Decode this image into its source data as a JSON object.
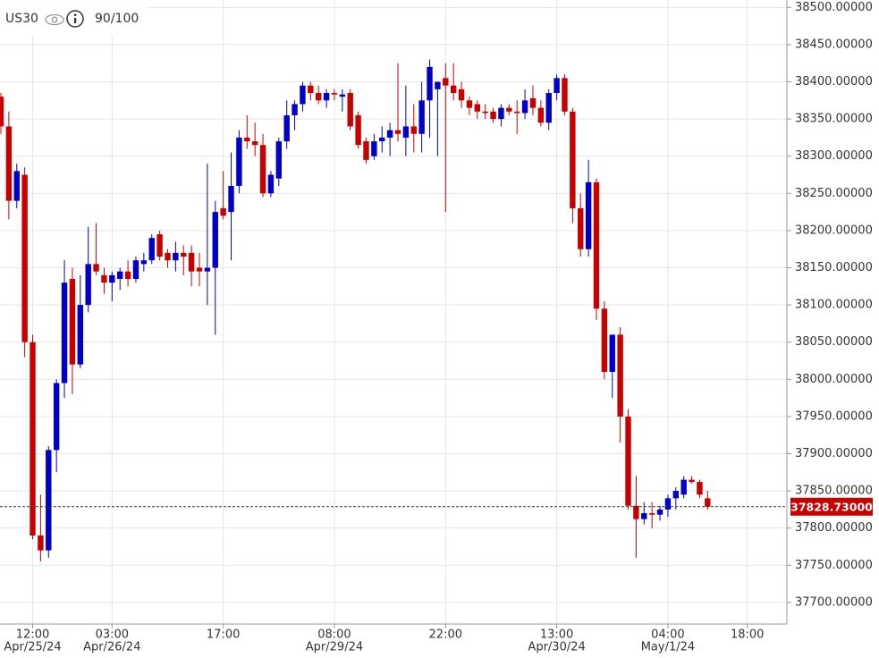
{
  "chart_data": {
    "type": "candlestick",
    "title": "US30",
    "subtitle": "90/100",
    "categories": [
      null,
      null,
      null,
      null,
      "12:00",
      null,
      null,
      null,
      null,
      null,
      null,
      null,
      null,
      null,
      "03:00",
      null,
      null,
      null,
      null,
      null,
      null,
      null,
      null,
      null,
      null,
      null,
      null,
      null,
      "17:00",
      null,
      null,
      null,
      null,
      null,
      null,
      null,
      null,
      null,
      null,
      null,
      null,
      null,
      "08:00",
      null,
      null,
      null,
      null,
      null,
      null,
      null,
      null,
      null,
      null,
      null,
      null,
      null,
      "22:00",
      null,
      null,
      null,
      null,
      null,
      null,
      null,
      null,
      null,
      null,
      null,
      null,
      null,
      "13:00",
      null,
      null,
      null,
      null,
      null,
      null,
      null,
      null,
      null,
      null,
      null,
      null,
      null,
      "04:00",
      null,
      null,
      null,
      null,
      null,
      null,
      null,
      null,
      null,
      "18:00"
    ],
    "category_dates": [
      null,
      null,
      null,
      null,
      "Apr/25/24",
      null,
      null,
      null,
      null,
      null,
      null,
      null,
      null,
      null,
      "Apr/26/24",
      null,
      null,
      null,
      null,
      null,
      null,
      null,
      null,
      null,
      null,
      null,
      null,
      null,
      null,
      null,
      null,
      null,
      null,
      null,
      null,
      null,
      null,
      null,
      null,
      null,
      null,
      null,
      "Apr/29/24",
      null,
      null,
      null,
      null,
      null,
      null,
      null,
      null,
      null,
      null,
      null,
      null,
      null,
      null,
      null,
      null,
      null,
      null,
      null,
      null,
      null,
      null,
      null,
      null,
      null,
      null,
      null,
      "Apr/30/24",
      null,
      null,
      null,
      null,
      null,
      null,
      null,
      null,
      null,
      null,
      null,
      null,
      null,
      "May/1/24",
      null,
      null,
      null,
      null,
      null,
      null,
      null,
      null,
      null,
      null
    ],
    "open": [
      38380,
      38340,
      38240,
      38275,
      38050,
      37790,
      37770,
      37905,
      37995,
      38135,
      38020,
      38100,
      38155,
      38140,
      38130,
      38135,
      38145,
      38135,
      38155,
      38160,
      38195,
      38170,
      38160,
      38170,
      38170,
      38150,
      38145,
      38150,
      38230,
      38225,
      38260,
      38325,
      38320,
      38315,
      38250,
      38270,
      38320,
      38355,
      38370,
      38395,
      38385,
      38375,
      38385,
      38380,
      38385,
      38355,
      38320,
      38300,
      38320,
      38325,
      38335,
      38325,
      38340,
      38330,
      38375,
      38390,
      38405,
      38395,
      38390,
      38375,
      38370,
      38360,
      38360,
      38350,
      38365,
      38360,
      38358,
      38378,
      38365,
      38345,
      38385,
      38405,
      38360,
      38230,
      38175,
      38265,
      38095,
      38010,
      38060,
      37950,
      37830,
      37812,
      37820,
      37818,
      37825,
      37840,
      37845,
      37865,
      37862,
      37840,
      null,
      null,
      null,
      null,
      null
    ],
    "high": [
      38385,
      38360,
      38290,
      38285,
      38060,
      37845,
      37910,
      38000,
      38160,
      38150,
      38140,
      38205,
      38210,
      38150,
      38145,
      38150,
      38160,
      38165,
      38170,
      38195,
      38200,
      38175,
      38185,
      38180,
      38180,
      38170,
      38290,
      38240,
      38280,
      38305,
      38335,
      38355,
      38345,
      38330,
      38280,
      38325,
      38375,
      38375,
      38400,
      38400,
      38395,
      38390,
      38390,
      38390,
      38390,
      38360,
      38325,
      38330,
      38340,
      38345,
      38425,
      38395,
      38370,
      38400,
      38430,
      38400,
      38425,
      38425,
      38400,
      38380,
      38375,
      38370,
      38365,
      38370,
      38370,
      38375,
      38390,
      38395,
      38375,
      38390,
      38410,
      38410,
      38365,
      38250,
      38295,
      38270,
      38105,
      38060,
      38070,
      37960,
      37870,
      37835,
      37835,
      37830,
      37845,
      37855,
      37870,
      37870,
      37865,
      37850,
      null,
      null,
      null,
      null,
      null
    ],
    "low": [
      38330,
      38215,
      38230,
      38030,
      37785,
      37755,
      37760,
      37875,
      37975,
      37980,
      38015,
      38090,
      38140,
      38115,
      38105,
      38120,
      38125,
      38130,
      38145,
      38155,
      38160,
      38150,
      38145,
      38140,
      38125,
      38125,
      38100,
      38060,
      38215,
      38160,
      38250,
      38310,
      38300,
      38245,
      38245,
      38260,
      38310,
      38335,
      38360,
      38375,
      38370,
      38365,
      38375,
      38360,
      38335,
      38310,
      38290,
      38295,
      38305,
      38300,
      38320,
      38300,
      38305,
      38305,
      38325,
      38300,
      38225,
      38375,
      38365,
      38355,
      38350,
      38350,
      38345,
      38340,
      38355,
      38330,
      38350,
      38355,
      38340,
      38335,
      38375,
      38355,
      38210,
      38165,
      38165,
      38080,
      38000,
      37975,
      37915,
      37825,
      37760,
      37805,
      37800,
      37810,
      37815,
      37825,
      37840,
      37860,
      37840,
      37825,
      null,
      null,
      null,
      null,
      null
    ],
    "close": [
      38340,
      38240,
      38280,
      38050,
      37790,
      37770,
      37905,
      37995,
      38130,
      38020,
      38100,
      38155,
      38145,
      38130,
      38140,
      38145,
      38135,
      38160,
      38160,
      38190,
      38165,
      38160,
      38170,
      38165,
      38145,
      38145,
      38150,
      38225,
      38220,
      38260,
      38325,
      38320,
      38315,
      38250,
      38275,
      38320,
      38355,
      38370,
      38395,
      38385,
      38375,
      38385,
      38383,
      38383,
      38340,
      38315,
      38295,
      38320,
      38325,
      38335,
      38330,
      38340,
      38330,
      38375,
      38420,
      38400,
      38395,
      38385,
      38375,
      38365,
      38360,
      38358,
      38350,
      38365,
      38360,
      38358,
      38375,
      38365,
      38345,
      38385,
      38405,
      38360,
      38230,
      38175,
      38265,
      38095,
      38010,
      38060,
      37950,
      37830,
      37812,
      37820,
      37818,
      37825,
      37840,
      37850,
      37865,
      37862,
      37845,
      37829,
      null,
      null,
      null,
      null,
      null
    ],
    "up_color": "#0000c8",
    "down_color": "#c80000",
    "ylim": [
      37671,
      38510
    ],
    "yticks": [
      {
        "value": 37700,
        "label": "37700.00000"
      },
      {
        "value": 37750,
        "label": "37750.00000"
      },
      {
        "value": 37800,
        "label": "37800.00000"
      },
      {
        "value": 37850,
        "label": "37850.00000"
      },
      {
        "value": 37900,
        "label": "37900.00000"
      },
      {
        "value": 37950,
        "label": "37950.00000"
      },
      {
        "value": 38000,
        "label": "38000.00000"
      },
      {
        "value": 38050,
        "label": "38050.00000"
      },
      {
        "value": 38100,
        "label": "38100.00000"
      },
      {
        "value": 38150,
        "label": "38150.00000"
      },
      {
        "value": 38200,
        "label": "38200.00000"
      },
      {
        "value": 38250,
        "label": "38250.00000"
      },
      {
        "value": 38300,
        "label": "38300.00000"
      },
      {
        "value": 38350,
        "label": "38350.00000"
      },
      {
        "value": 38400,
        "label": "38400.00000"
      },
      {
        "value": 38450,
        "label": "38450.00000"
      },
      {
        "value": 38500,
        "label": "38500.00000"
      }
    ],
    "grid": true,
    "current_price": {
      "value": 37828.73,
      "label": "37828.73000"
    }
  }
}
